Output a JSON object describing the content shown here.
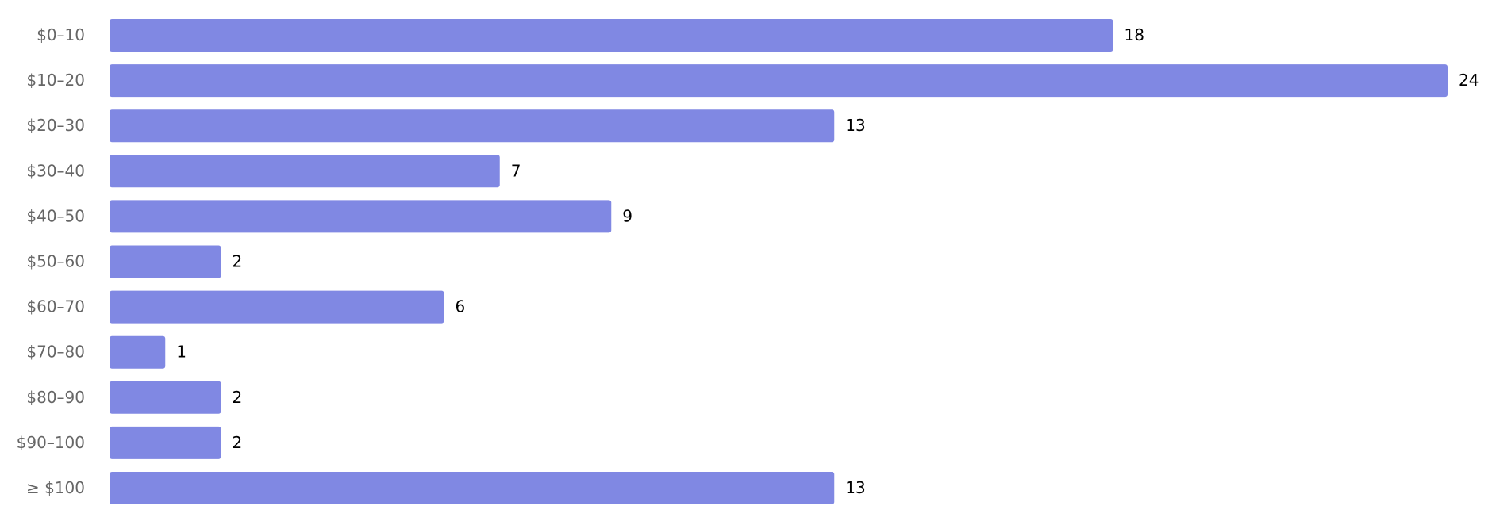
{
  "chart_data": {
    "type": "bar",
    "orientation": "horizontal",
    "categories": [
      "$0–10",
      "$10–20",
      "$20–30",
      "$30–40",
      "$40–50",
      "$50–60",
      "$60–70",
      "$70–80",
      "$80–90",
      "$90–100",
      "≥ $100"
    ],
    "values": [
      18,
      24,
      13,
      7,
      9,
      2,
      6,
      1,
      2,
      2,
      13
    ],
    "color": "#8088e3"
  }
}
